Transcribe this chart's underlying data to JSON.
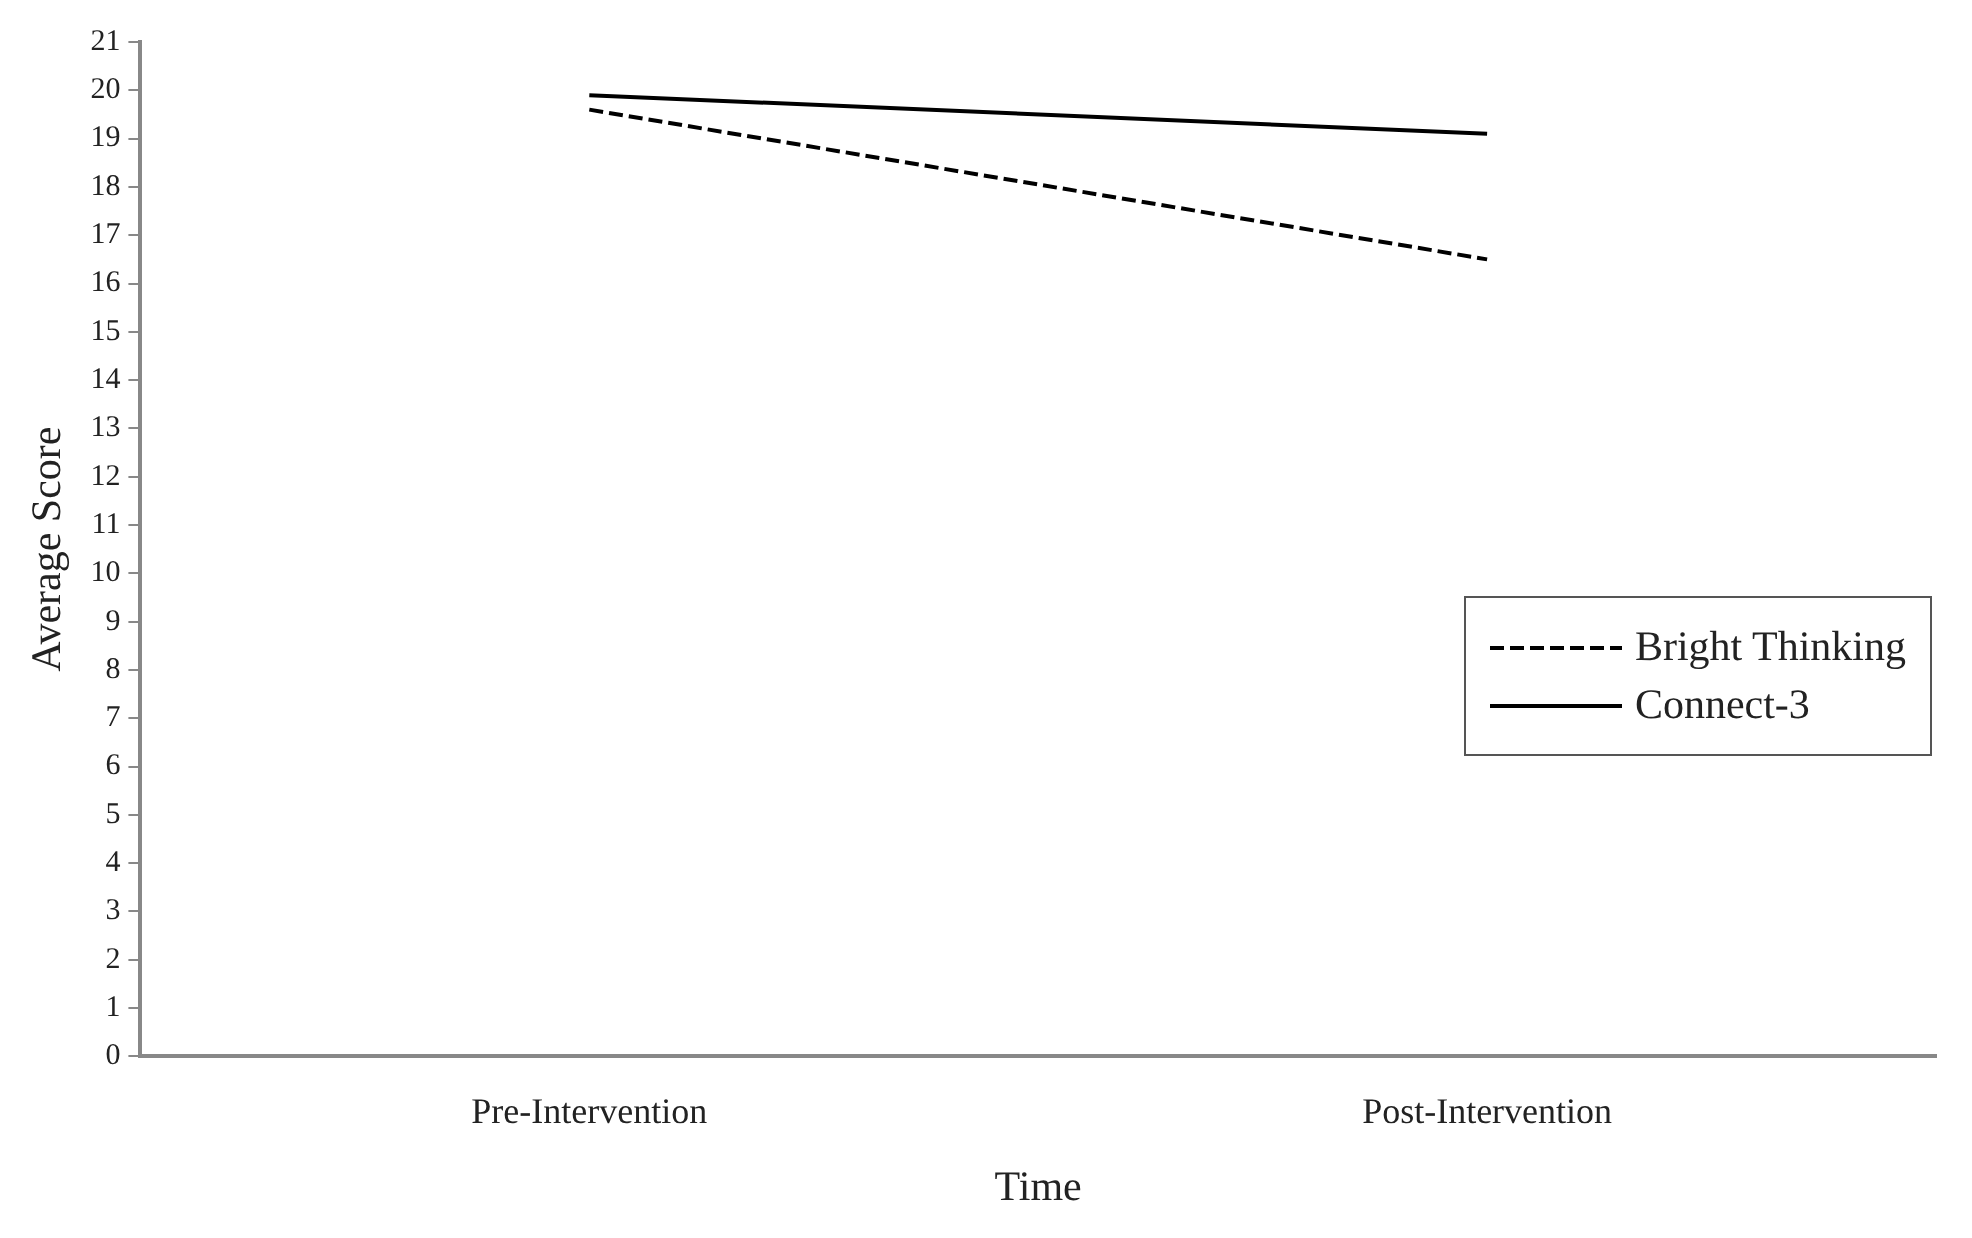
{
  "chart_data": {
    "type": "line",
    "xlabel": "Time",
    "ylabel": "Average Score",
    "categories": [
      "Pre-Intervention",
      "Post-Intervention"
    ],
    "series": [
      {
        "name": "Bright Thinking",
        "color": "#000000",
        "values": [
          19.6,
          16.5
        ],
        "line_style": "dashed"
      },
      {
        "name": "Connect-3",
        "color": "#000000",
        "values": [
          19.9,
          19.1
        ],
        "line_style": "solid"
      }
    ],
    "ylim": [
      0,
      21
    ],
    "yticks": [
      0,
      1,
      2,
      3,
      4,
      5,
      6,
      7,
      8,
      9,
      10,
      11,
      12,
      13,
      14,
      15,
      16,
      17,
      18,
      19,
      20,
      21
    ],
    "grid": false,
    "legend": "right",
    "marker": "none"
  }
}
